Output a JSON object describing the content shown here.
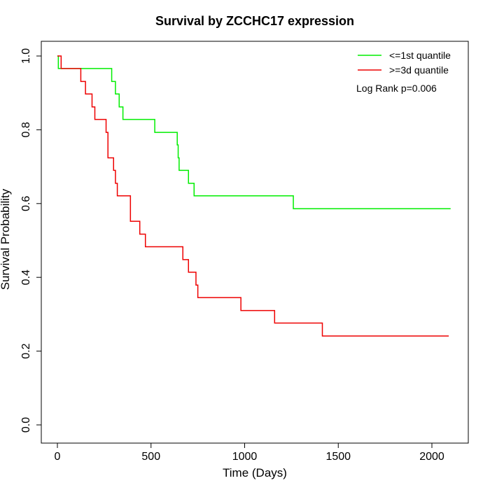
{
  "chart_data": {
    "type": "line",
    "step": true,
    "title": "Survival by ZCCHC17 expression",
    "xlabel": "Time (Days)",
    "ylabel": "Survival Probability",
    "xlim": [
      0,
      2100
    ],
    "ylim": [
      0,
      1
    ],
    "xticks": [
      0,
      500,
      1000,
      1500,
      2000
    ],
    "xtick_labels": [
      "0",
      "500",
      "1000",
      "1500",
      "2000"
    ],
    "yticks": [
      0,
      0.2,
      0.4,
      0.6,
      0.8,
      1.0
    ],
    "ytick_labels": [
      "0.0",
      "0.2",
      "0.4",
      "0.6",
      "0.8",
      "1.0"
    ],
    "grid": false,
    "legend_position": "top-right",
    "annotation": "Log Rank p=0.006",
    "series": [
      {
        "name": "<=1st quantile",
        "color": "#00ee00",
        "x": [
          0,
          5,
          290,
          310,
          330,
          350,
          360,
          520,
          640,
          645,
          650,
          700,
          720,
          730,
          1260,
          2100
        ],
        "y": [
          1.0,
          0.966,
          0.931,
          0.897,
          0.862,
          0.828,
          0.828,
          0.793,
          0.759,
          0.724,
          0.69,
          0.655,
          0.655,
          0.621,
          0.586,
          0.586
        ]
      },
      {
        "name": ">=3d quantile",
        "color": "#ee0000",
        "x": [
          0,
          20,
          125,
          150,
          185,
          200,
          260,
          270,
          300,
          310,
          320,
          340,
          390,
          440,
          470,
          670,
          700,
          740,
          750,
          760,
          980,
          1160,
          1415,
          2090
        ],
        "y": [
          1.0,
          0.966,
          0.931,
          0.897,
          0.862,
          0.828,
          0.793,
          0.724,
          0.69,
          0.655,
          0.621,
          0.621,
          0.552,
          0.517,
          0.483,
          0.448,
          0.414,
          0.379,
          0.345,
          0.345,
          0.31,
          0.276,
          0.241,
          0.241
        ]
      }
    ]
  }
}
